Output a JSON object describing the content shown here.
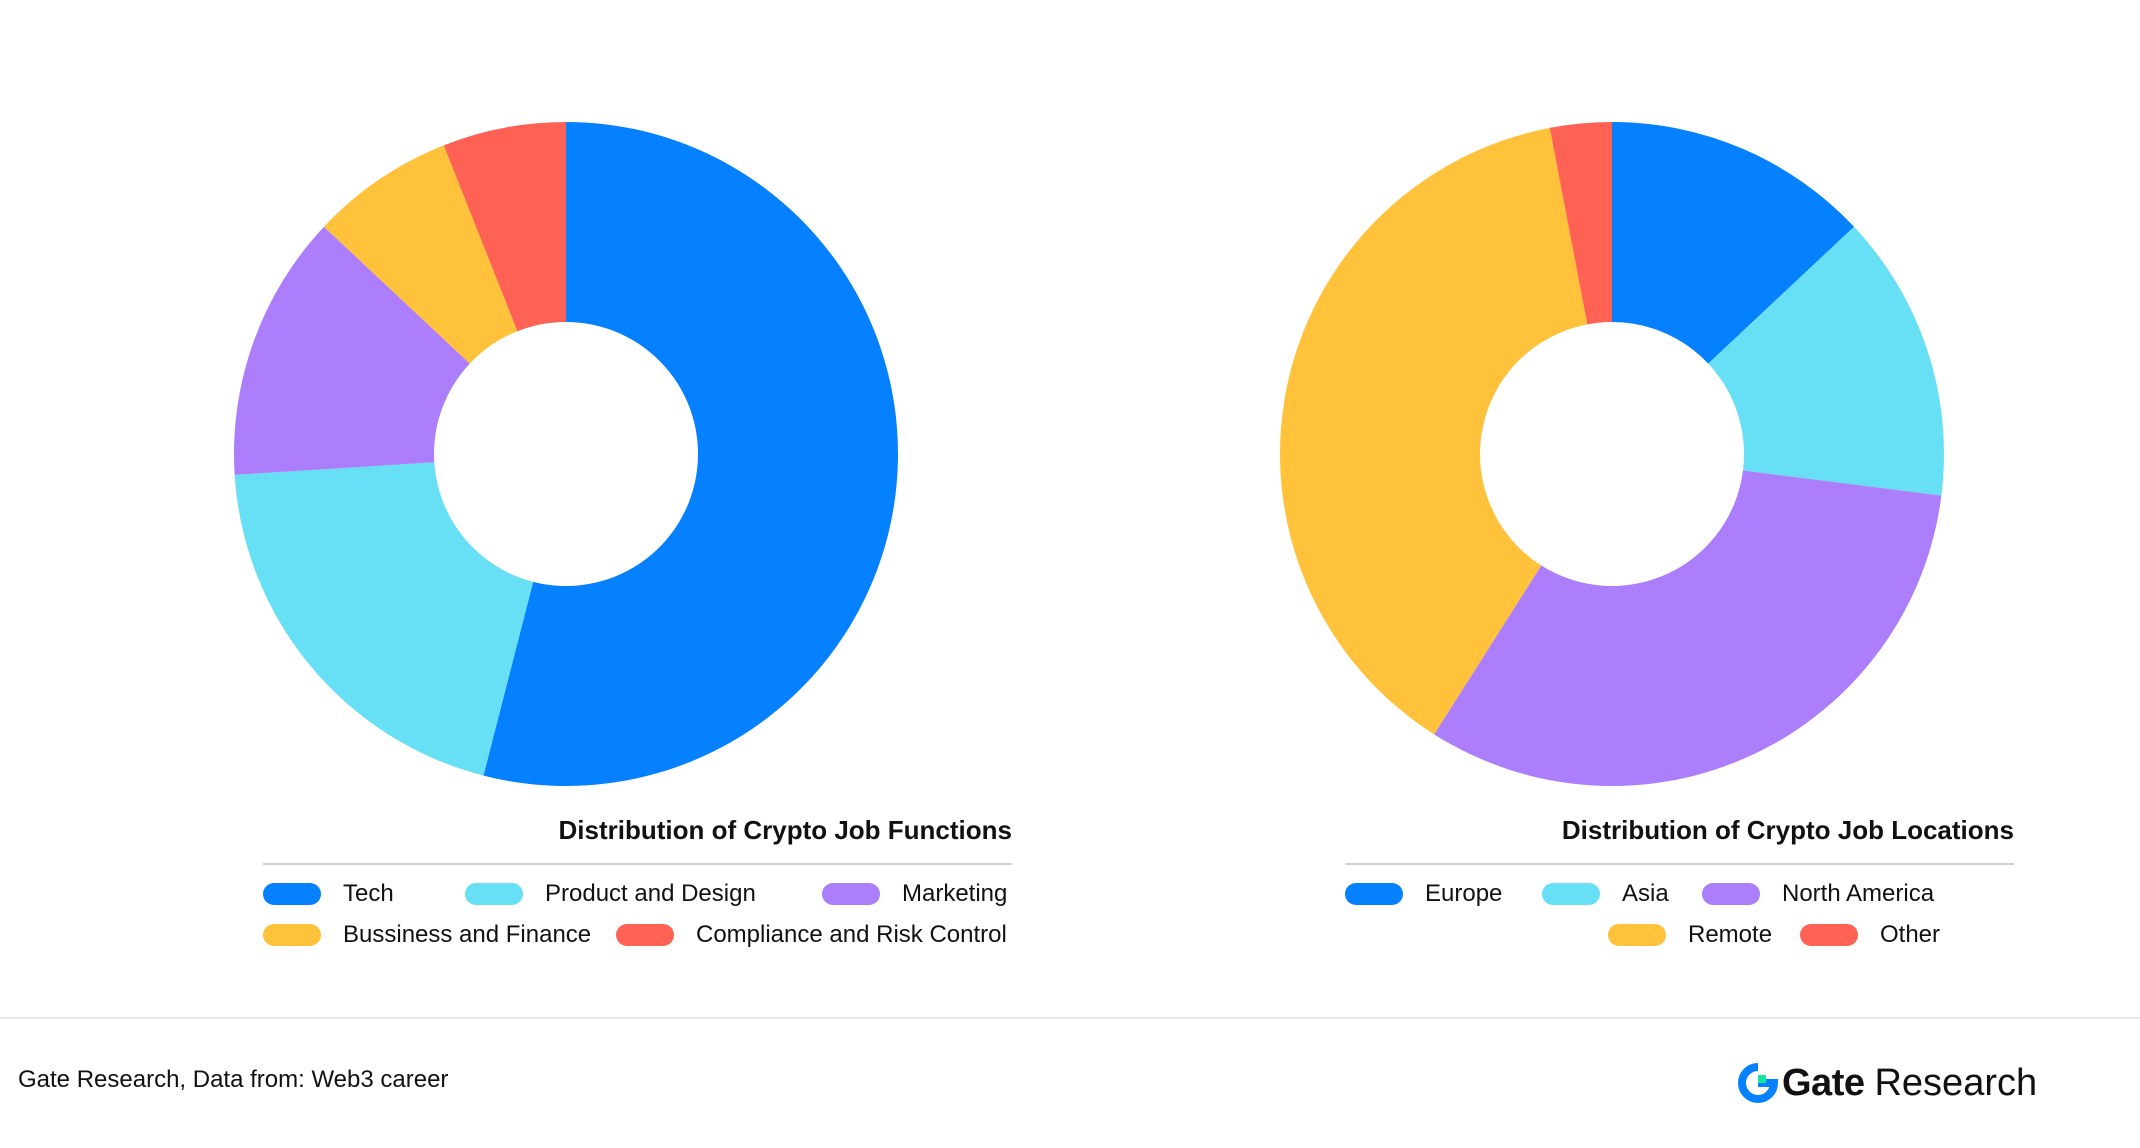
{
  "chart_data": [
    {
      "type": "pie",
      "title": "Distribution of Crypto Job Functions",
      "categories": [
        "Tech",
        "Product and Design",
        "Marketing",
        "Bussiness and Finance",
        "Compliance and Risk Control"
      ],
      "values": [
        54,
        20,
        13,
        7,
        6
      ],
      "colors": [
        "#0580FF",
        "#67DFF5",
        "#AC7EFC",
        "#FFC23A",
        "#FF6254"
      ],
      "legend": "bottom"
    },
    {
      "type": "pie",
      "title": "Distribution of Crypto Job Locations",
      "categories": [
        "Europe",
        "Asia",
        "North America",
        "Remote",
        "Other"
      ],
      "values": [
        13,
        14,
        32,
        38,
        3
      ],
      "colors": [
        "#0580FF",
        "#67DFF5",
        "#AC7EFC",
        "#FFC23A",
        "#FF6254"
      ],
      "legend": "bottom"
    }
  ],
  "footer": {
    "source": "Gate Research, Data from: Web3 career",
    "brand_name": "Gate",
    "brand_sub": "Research"
  },
  "icons": {
    "logo": "gate-logo-icon"
  }
}
